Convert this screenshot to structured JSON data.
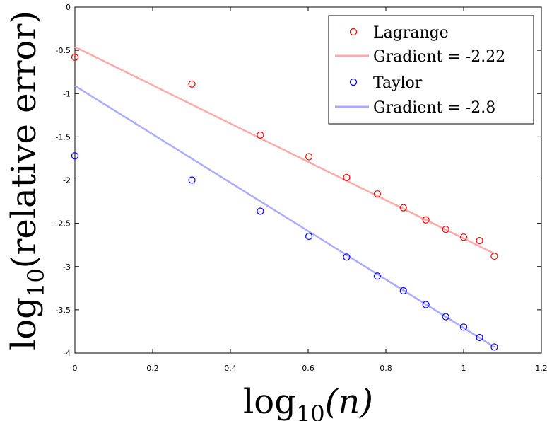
{
  "chart_data": {
    "type": "scatter",
    "xlabel_main": "log",
    "xlabel_sub": "10",
    "xlabel_rest": "(n)",
    "ylabel_main": "log",
    "ylabel_sub": "10",
    "ylabel_rest": "(relative error)",
    "xlim": [
      0,
      1.2
    ],
    "ylim": [
      -4,
      0
    ],
    "xticks": [
      0,
      0.2,
      0.4,
      0.6,
      0.8,
      1,
      1.2
    ],
    "xtick_labels": [
      "0",
      "0.2",
      "0.4",
      "0.6",
      "0.8",
      "1",
      "1.2"
    ],
    "yticks": [
      0,
      -0.5,
      -1,
      -1.5,
      -2,
      -2.5,
      -3,
      -3.5,
      -4
    ],
    "ytick_labels": [
      "0",
      "-0.5",
      "-1",
      "-1.5",
      "-2",
      "-2.5",
      "-3",
      "-3.5",
      "-4"
    ],
    "grid": false,
    "legend_position": "top-right",
    "series": [
      {
        "name": "Lagrange",
        "kind": "points",
        "marker": "circle",
        "color": "#ff0000",
        "x": [
          0,
          0.301,
          0.477,
          0.602,
          0.699,
          0.778,
          0.845,
          0.903,
          0.954,
          1.0,
          1.041,
          1.079
        ],
        "y": [
          -0.58,
          -0.89,
          -1.48,
          -1.73,
          -1.97,
          -2.16,
          -2.32,
          -2.46,
          -2.57,
          -2.66,
          -2.7,
          -2.88
        ]
      },
      {
        "name": "Gradient = -2.22",
        "kind": "line",
        "color": "#ffaaaa",
        "x": [
          0,
          1.079
        ],
        "y": [
          -0.46,
          -2.85
        ]
      },
      {
        "name": "Taylor",
        "kind": "points",
        "marker": "circle",
        "color": "#0000ff",
        "x": [
          0,
          0.301,
          0.477,
          0.602,
          0.699,
          0.778,
          0.845,
          0.903,
          0.954,
          1.0,
          1.041,
          1.079
        ],
        "y": [
          -1.72,
          -2.0,
          -2.36,
          -2.65,
          -2.89,
          -3.11,
          -3.28,
          -3.44,
          -3.58,
          -3.7,
          -3.82,
          -3.93
        ]
      },
      {
        "name": "Gradient = -2.8",
        "kind": "line",
        "color": "#aaaaff",
        "x": [
          0,
          1.079
        ],
        "y": [
          -0.91,
          -3.93
        ]
      }
    ]
  }
}
